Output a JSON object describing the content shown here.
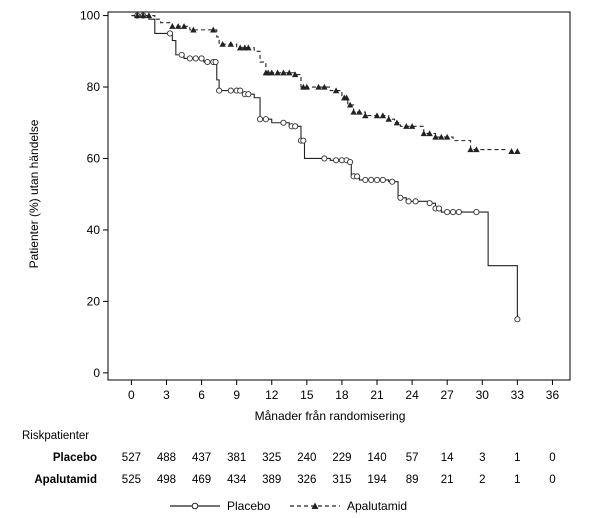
{
  "chart_data": {
    "type": "line",
    "subtype": "kaplan-meier",
    "xlabel": "Månader från randomisering",
    "ylabel": "Patienter (%) utan händelse",
    "xlim": [
      -2,
      37.5
    ],
    "ylim": [
      -2,
      101
    ],
    "xticks": [
      0,
      3,
      6,
      9,
      12,
      15,
      18,
      21,
      24,
      27,
      30,
      33,
      36
    ],
    "yticks": [
      0,
      20,
      40,
      60,
      80,
      100
    ],
    "grid": false,
    "legend_position": "bottom",
    "series": [
      {
        "name": "Placebo",
        "line_style": "solid",
        "marker": "open-circle",
        "color": "#333333",
        "steps": [
          [
            0,
            100
          ],
          [
            1.5,
            99
          ],
          [
            2,
            95
          ],
          [
            3.5,
            93
          ],
          [
            3.8,
            89
          ],
          [
            4.5,
            88
          ],
          [
            6.2,
            87
          ],
          [
            7.3,
            82
          ],
          [
            7.5,
            79
          ],
          [
            9.5,
            78
          ],
          [
            10.5,
            77
          ],
          [
            11,
            71
          ],
          [
            12,
            70
          ],
          [
            13.5,
            69
          ],
          [
            14.5,
            65
          ],
          [
            14.8,
            60
          ],
          [
            17,
            59.5
          ],
          [
            18.5,
            59
          ],
          [
            18.8,
            55
          ],
          [
            19.5,
            54
          ],
          [
            22,
            53.5
          ],
          [
            22.8,
            49
          ],
          [
            23.5,
            48
          ],
          [
            25.5,
            47.5
          ],
          [
            26,
            46
          ],
          [
            26.5,
            45
          ],
          [
            30.5,
            30
          ],
          [
            33,
            15
          ]
        ],
        "censor_x": [
          0.5,
          1,
          3.3,
          4.3,
          5,
          5.5,
          6,
          6.5,
          7,
          7.2,
          7.5,
          8.5,
          9,
          9.3,
          9.7,
          10,
          11,
          11.5,
          13,
          13.7,
          14,
          14.5,
          14.7,
          16.5,
          17.5,
          18,
          18.4,
          18.7,
          19,
          19.3,
          20,
          20.5,
          21,
          21.5,
          22.3,
          23,
          23.7,
          24.3,
          25.5,
          26,
          26.3,
          27,
          27.5,
          28,
          29.5,
          33
        ]
      },
      {
        "name": "Apalutamid",
        "line_style": "dashed",
        "marker": "filled-triangle",
        "color": "#333333",
        "steps": [
          [
            0,
            100
          ],
          [
            2,
            99
          ],
          [
            2.5,
            98
          ],
          [
            3.5,
            97
          ],
          [
            5,
            96
          ],
          [
            7.3,
            94
          ],
          [
            7.5,
            92
          ],
          [
            9,
            91
          ],
          [
            10.5,
            90
          ],
          [
            11,
            87
          ],
          [
            11.5,
            84
          ],
          [
            14,
            83.5
          ],
          [
            14.5,
            80
          ],
          [
            17,
            79
          ],
          [
            18,
            77
          ],
          [
            18.5,
            75
          ],
          [
            19,
            73
          ],
          [
            20,
            72
          ],
          [
            22,
            71
          ],
          [
            22.5,
            70
          ],
          [
            23,
            69
          ],
          [
            25,
            67
          ],
          [
            26,
            66
          ],
          [
            27.5,
            65
          ],
          [
            29,
            62.5
          ],
          [
            32,
            62
          ]
        ],
        "censor_x": [
          0.5,
          1,
          1.5,
          3.5,
          4,
          4.5,
          5.3,
          7,
          7.8,
          8.5,
          9.3,
          9.7,
          10,
          11.5,
          11.7,
          12,
          12.5,
          13,
          13.5,
          14,
          14.7,
          15,
          16,
          16.5,
          17.5,
          18.2,
          18.4,
          18.7,
          19,
          19.5,
          20,
          21,
          21.5,
          22,
          22.7,
          23.5,
          24,
          25,
          25.5,
          26,
          26.5,
          27,
          29,
          29.5,
          32.5,
          33
        ]
      }
    ],
    "risk_table": {
      "title": "Riskpatienter",
      "rows": [
        {
          "label": "Placebo",
          "values": [
            "527",
            "488",
            "437",
            "381",
            "325",
            "240",
            "229",
            "140",
            "57",
            "14",
            "3",
            "1",
            "0"
          ]
        },
        {
          "label": "Apalutamid",
          "values": [
            "525",
            "498",
            "469",
            "434",
            "389",
            "326",
            "315",
            "194",
            "89",
            "21",
            "2",
            "1",
            "0"
          ]
        }
      ]
    }
  }
}
